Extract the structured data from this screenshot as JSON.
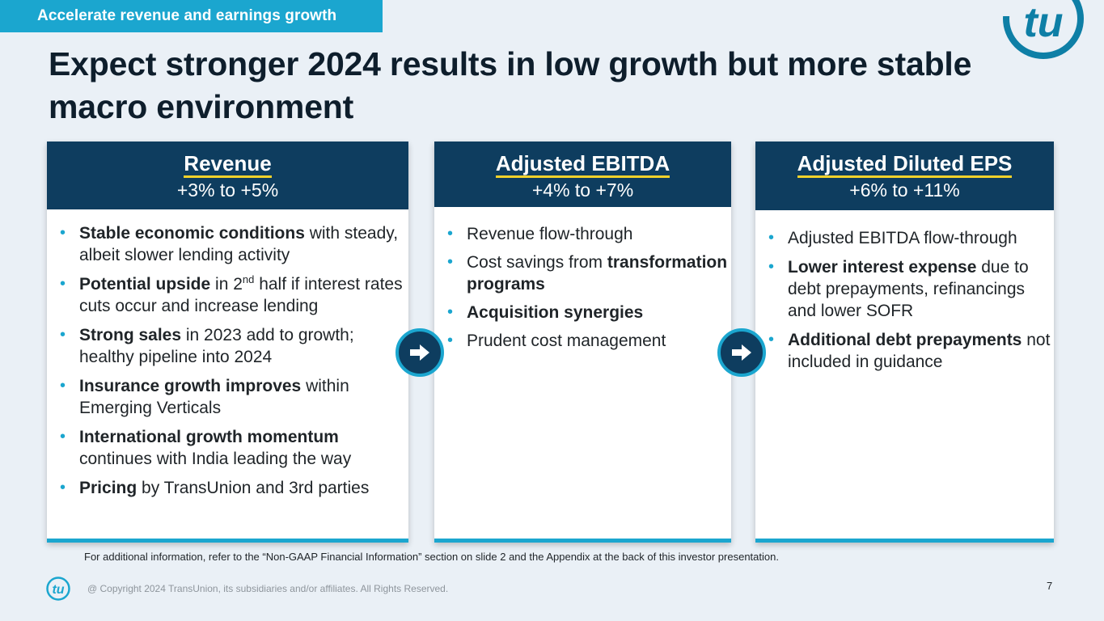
{
  "header": {
    "section_tag": "Accelerate revenue and earnings growth",
    "title": "Expect stronger 2024 results in low growth but more stable macro environment"
  },
  "cards": [
    {
      "title": "Revenue",
      "range": "+3% to +5%",
      "bullets": [
        {
          "bold": "Stable economic conditions",
          "rest": " with steady, albeit slower lending activity"
        },
        {
          "bold": "Potential upside",
          "mid": " in 2",
          "sup": "nd",
          "rest": " half if interest rates cuts occur and increase lending"
        },
        {
          "bold": "Strong sales",
          "rest": " in 2023 add to growth; healthy pipeline into 2024"
        },
        {
          "bold": "Insurance growth improves",
          "rest": " within Emerging Verticals"
        },
        {
          "bold": "International growth momentum",
          "rest": " continues with India leading the way"
        },
        {
          "bold": "Pricing",
          "rest": " by TransUnion and 3rd parties"
        }
      ]
    },
    {
      "title": "Adjusted EBITDA",
      "range": "+4% to +7%",
      "bullets": [
        {
          "text": "Revenue flow-through"
        },
        {
          "pre": "Cost savings from ",
          "bold": "transformation programs"
        },
        {
          "bold": "Acquisition synergies"
        },
        {
          "text": "Prudent cost management"
        }
      ]
    },
    {
      "title": "Adjusted Diluted EPS",
      "range": "+6% to +11%",
      "bullets": [
        {
          "text": "Adjusted EBITDA flow-through"
        },
        {
          "bold": "Lower interest expense",
          "rest": " due to debt prepayments, refinancings and lower SOFR"
        },
        {
          "bold": "Additional debt prepayments",
          "rest": " not included in guidance"
        }
      ]
    }
  ],
  "footer": {
    "footnote": "For additional information, refer to the “Non-GAAP Financial Information” section on slide 2 and the Appendix at the back of this investor presentation.",
    "copyright": "@ Copyright 2024 TransUnion, its subsidiaries and/or affiliates.  All Rights Reserved.",
    "page_number": "7"
  },
  "icons": {
    "brand_logo": "tu-logo-icon",
    "arrow": "arrow-right-icon"
  },
  "colors": {
    "accent": "#1ba6cf",
    "navy": "#0e3d5f",
    "underline": "#f2d22b",
    "background": "#eaf0f6"
  }
}
